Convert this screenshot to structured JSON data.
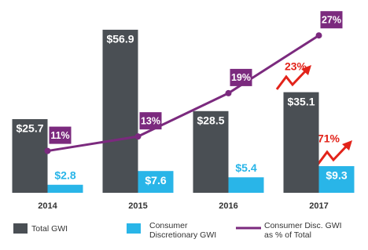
{
  "chart_data": {
    "type": "bar",
    "categories": [
      "2014",
      "2015",
      "2016",
      "2017"
    ],
    "series": [
      {
        "name": "Total GWI",
        "type": "bar",
        "color": "#4a4f54",
        "values": [
          25.7,
          56.9,
          28.5,
          35.1
        ],
        "value_labels": [
          "$25.7",
          "$56.9",
          "$28.5",
          "$35.1"
        ]
      },
      {
        "name": "Consumer Discretionary GWI",
        "type": "bar",
        "color": "#29b5e8",
        "values": [
          2.8,
          7.6,
          5.4,
          9.3
        ],
        "value_labels": [
          "$2.8",
          "$7.6",
          "$5.4",
          "$9.3"
        ]
      },
      {
        "name": "Consumer Disc. GWI as % of Total",
        "type": "line",
        "axis": "y2",
        "color": "#7b2a7e",
        "values": [
          11,
          13,
          19,
          27
        ],
        "value_labels": [
          "11%",
          "13%",
          "19%",
          "27%"
        ]
      }
    ],
    "ylim": [
      0,
      67
    ],
    "y2lim": [
      5.2,
      31.8
    ],
    "annotations": [
      {
        "text": "23%",
        "color": "#e2231a"
      },
      {
        "text": "71%",
        "color": "#e2231a"
      }
    ]
  }
}
